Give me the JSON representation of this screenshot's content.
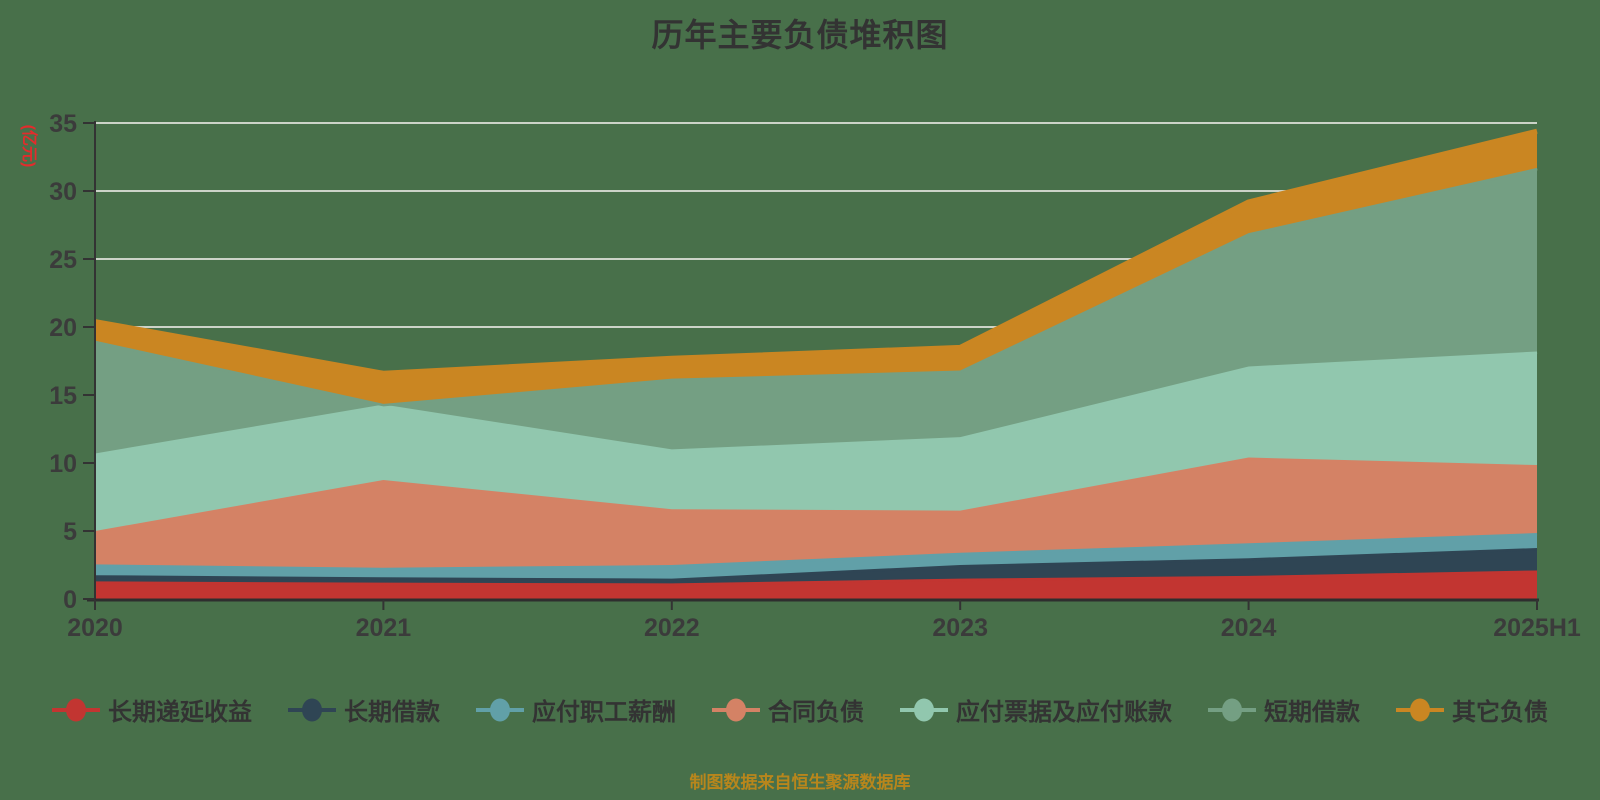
{
  "title": "历年主要负债堆积图",
  "y_axis_name": "(亿元)",
  "footer_note": "制图数据来自恒生聚源数据库",
  "colors": {
    "background": "#48704a",
    "title_text": "#333333",
    "axis_label_text": "#3b3b3b",
    "y_axis_name_text": "#e22c2c",
    "footer_text": "#b8861c",
    "gridline": "#ccd3c8",
    "axis_line": "#333333"
  },
  "chart_data": {
    "type": "area",
    "stacked": true,
    "title": "历年主要负债堆积图",
    "xlabel": "",
    "ylabel": "(亿元)",
    "x": [
      "2020",
      "2021",
      "2022",
      "2023",
      "2024",
      "2025H1"
    ],
    "y_ticks": [
      0,
      5,
      10,
      15,
      20,
      25,
      30,
      35
    ],
    "ylim": [
      0,
      35
    ],
    "grid": true,
    "legend_position": "bottom",
    "series": [
      {
        "name": "长期递延收益",
        "color": "#c23531",
        "values": [
          1.3,
          1.2,
          1.15,
          1.5,
          1.7,
          2.1
        ]
      },
      {
        "name": "长期借款",
        "color": "#2f4554",
        "values": [
          0.45,
          0.4,
          0.35,
          1.0,
          1.3,
          1.65
        ]
      },
      {
        "name": "应付职工薪酬",
        "color": "#61a0a8",
        "values": [
          0.8,
          0.7,
          1.0,
          0.9,
          1.1,
          1.1
        ]
      },
      {
        "name": "合同负债",
        "color": "#d48265",
        "values": [
          2.45,
          6.45,
          4.1,
          3.1,
          6.3,
          5.0
        ]
      },
      {
        "name": "应付票据及应付账款",
        "color": "#91c7ae",
        "values": [
          5.7,
          5.55,
          4.4,
          5.4,
          6.7,
          8.35
        ]
      },
      {
        "name": "短期借款",
        "color": "#749f83",
        "values": [
          8.3,
          0.05,
          5.2,
          4.9,
          9.8,
          13.5
        ]
      },
      {
        "name": "其它负债",
        "color": "#ca8622",
        "values": [
          1.4,
          2.25,
          1.5,
          1.7,
          2.3,
          2.7
        ]
      }
    ]
  }
}
